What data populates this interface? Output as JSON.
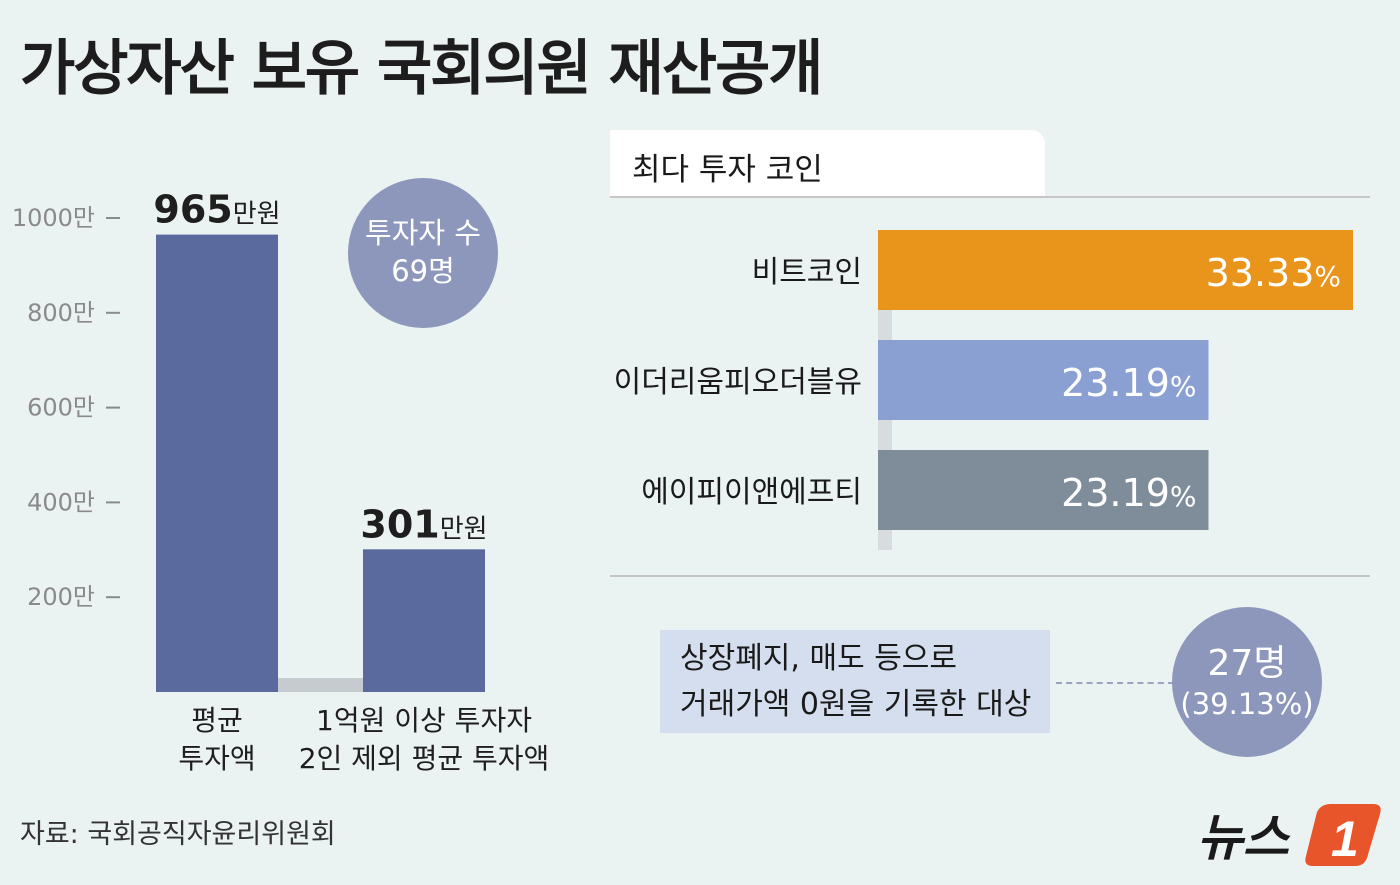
{
  "title": "가상자산 보유 국회의원 재산공개",
  "chart_data": [
    {
      "type": "bar",
      "categories": [
        "평균 투자액",
        "1억원 이상 투자자 2인 제외 평균 투자액"
      ],
      "category_lines": [
        [
          "평균",
          "투자액"
        ],
        [
          "1억원 이상 투자자",
          "2인 제외 평균 투자액"
        ]
      ],
      "values": [
        965,
        301
      ],
      "value_labels": [
        {
          "num": "965",
          "unit": "만원"
        },
        {
          "num": "301",
          "unit": "만원"
        }
      ],
      "yticks": [
        {
          "value": 1000,
          "label": "1000만"
        },
        {
          "value": 800,
          "label": "800만"
        },
        {
          "value": 600,
          "label": "600만"
        },
        {
          "value": 400,
          "label": "400만"
        },
        {
          "value": 200,
          "label": "200만"
        }
      ],
      "ylim": [
        0,
        1000
      ],
      "bar_color": "#5b6a9e"
    },
    {
      "type": "bar",
      "orientation": "horizontal",
      "title": "최다 투자 코인",
      "categories": [
        "비트코인",
        "이더리움피오더블유",
        "에이피이앤에프티"
      ],
      "values": [
        33.33,
        23.19,
        23.19
      ],
      "value_labels": [
        "33.33",
        "23.19",
        "23.19"
      ],
      "unit": "%",
      "colors": [
        "#e9941a",
        "#8aa0d2",
        "#7f8d9a"
      ]
    }
  ],
  "investor_bubble": {
    "line1": "투자자 수",
    "line2": "69명"
  },
  "note": {
    "lines": [
      "상장폐지, 매도 등으로",
      "거래가액 0원을 기록한 대상"
    ],
    "count": "27명",
    "percent": "(39.13%)"
  },
  "source": "자료: 국회공직자윤리위원회",
  "logo": {
    "text": "뉴스",
    "mark": "1"
  }
}
